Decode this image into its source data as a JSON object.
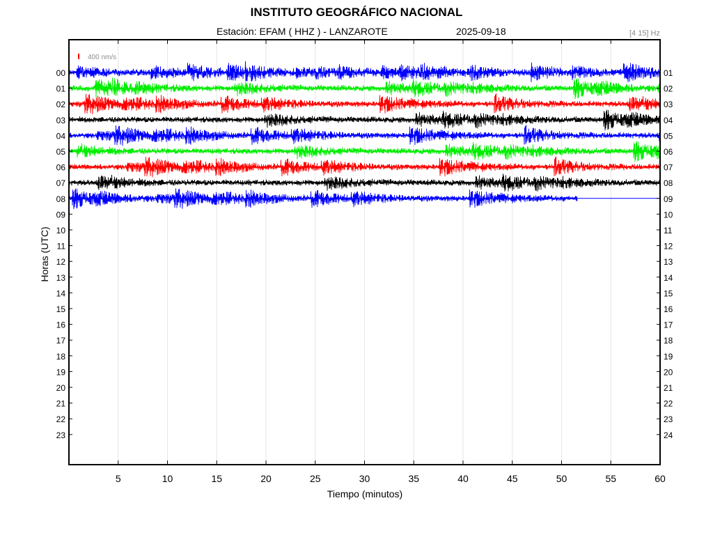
{
  "header": {
    "title": "INSTITUTO GEOGRÁFICO NACIONAL",
    "station": "Estación:  EFAM ( HHZ ) - LANZAROTE",
    "date": "2025-09-18",
    "band": "[4 15] Hz"
  },
  "chart_data": {
    "type": "line",
    "title": "INSTITUTO GEOGRÁFICO NACIONAL",
    "subtitle": "Estación:  EFAM ( HHZ ) - LANZAROTE",
    "xlabel": "Tiempo (minutos)",
    "ylabel": "Horas (UTC)",
    "xlim": [
      0,
      60
    ],
    "x_ticks": [
      "5",
      "10",
      "15",
      "20",
      "25",
      "30",
      "35",
      "40",
      "45",
      "50",
      "55",
      "60"
    ],
    "x_tick_values": [
      5,
      10,
      15,
      20,
      25,
      30,
      35,
      40,
      45,
      50,
      55,
      60
    ],
    "y_left_labels": [
      "00",
      "01",
      "02",
      "03",
      "04",
      "05",
      "06",
      "07",
      "08",
      "09",
      "10",
      "11",
      "12",
      "13",
      "14",
      "15",
      "16",
      "17",
      "18",
      "19",
      "20",
      "21",
      "22",
      "23"
    ],
    "y_right_labels": [
      "01",
      "02",
      "03",
      "04",
      "05",
      "06",
      "07",
      "08",
      "09",
      "10",
      "11",
      "12",
      "13",
      "14",
      "15",
      "16",
      "17",
      "18",
      "19",
      "20",
      "21",
      "22",
      "23",
      "24"
    ],
    "grid": "vertical",
    "scale_label": "400 nm/s",
    "scale_color": "#ff0000",
    "series": [
      {
        "hour": "00",
        "color": "#0000ff",
        "end_minute": 60
      },
      {
        "hour": "01",
        "color": "#00ee00",
        "end_minute": 60
      },
      {
        "hour": "02",
        "color": "#ff0000",
        "end_minute": 60
      },
      {
        "hour": "03",
        "color": "#000000",
        "end_minute": 60
      },
      {
        "hour": "04",
        "color": "#0000ff",
        "end_minute": 60
      },
      {
        "hour": "05",
        "color": "#00ee00",
        "end_minute": 60
      },
      {
        "hour": "06",
        "color": "#ff0000",
        "end_minute": 60
      },
      {
        "hour": "07",
        "color": "#000000",
        "end_minute": 60
      },
      {
        "hour": "08",
        "color": "#0000ff",
        "end_minute": 51.6
      }
    ]
  }
}
